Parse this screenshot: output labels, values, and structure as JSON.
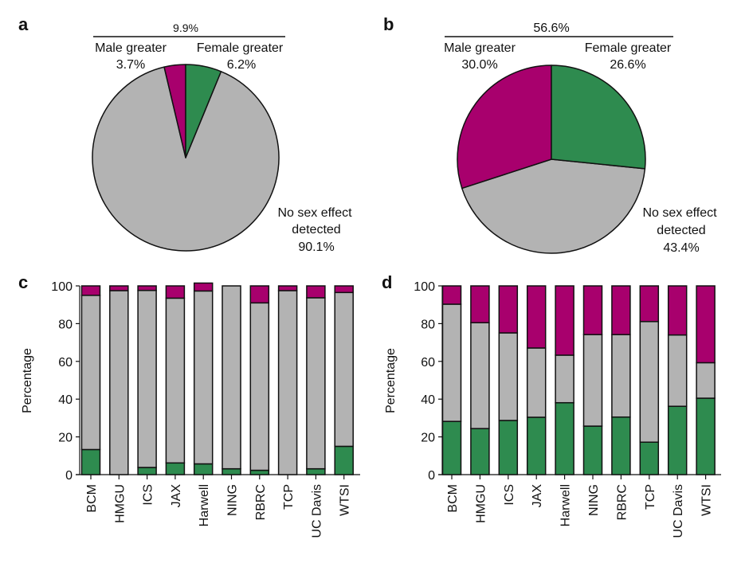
{
  "colors": {
    "male": "#a8006d",
    "female": "#2e8b4f",
    "none": "#b3b3b3",
    "outline": "#111111"
  },
  "chart_data": [
    {
      "panel": "a",
      "type": "pie",
      "title": "",
      "bracket_label": "9.9%",
      "slices": [
        {
          "key": "male",
          "label": "Male greater",
          "value": 3.7,
          "value_label": "3.7%"
        },
        {
          "key": "female",
          "label": "Female greater",
          "value": 6.2,
          "value_label": "6.2%"
        },
        {
          "key": "none",
          "label_line1": "No sex effect",
          "label_line2": "detected",
          "value": 90.1,
          "value_label": "90.1%"
        }
      ]
    },
    {
      "panel": "b",
      "type": "pie",
      "title": "",
      "bracket_label": "56.6%",
      "slices": [
        {
          "key": "male",
          "label": "Male greater",
          "value": 30.0,
          "value_label": "30.0%"
        },
        {
          "key": "female",
          "label": "Female greater",
          "value": 26.6,
          "value_label": "26.6%"
        },
        {
          "key": "none",
          "label_line1": "No sex effect",
          "label_line2": "detected",
          "value": 43.4,
          "value_label": "43.4%"
        }
      ]
    },
    {
      "panel": "c",
      "type": "bar",
      "stacked": true,
      "ylabel": "Percentage",
      "xlabel": "",
      "ylim": [
        0,
        100
      ],
      "yticks": [
        0,
        20,
        40,
        60,
        80,
        100
      ],
      "categories": [
        "BCM",
        "HMGU",
        "ICS",
        "JAX",
        "Harwell",
        "NING",
        "RBRC",
        "TCP",
        "UC Davis",
        "WTSI"
      ],
      "series": [
        {
          "name": "Female greater",
          "key": "female",
          "values": [
            13.3,
            0,
            3.8,
            6.2,
            5.7,
            3.1,
            2.3,
            0,
            3.1,
            15.0
          ]
        },
        {
          "name": "No sex effect detected",
          "key": "none",
          "values": [
            81.7,
            97.5,
            93.8,
            87.3,
            91.6,
            96.9,
            88.7,
            97.5,
            90.6,
            81.5
          ]
        },
        {
          "name": "Male greater",
          "key": "male",
          "values": [
            5.0,
            2.5,
            2.4,
            6.5,
            4.2,
            0,
            9.0,
            2.5,
            6.3,
            3.5
          ]
        }
      ]
    },
    {
      "panel": "d",
      "type": "bar",
      "stacked": true,
      "ylabel": "Percentage",
      "xlabel": "",
      "ylim": [
        0,
        100
      ],
      "yticks": [
        0,
        20,
        40,
        60,
        80,
        100
      ],
      "categories": [
        "BCM",
        "HMGU",
        "ICS",
        "JAX",
        "Harwell",
        "NING",
        "RBRC",
        "TCP",
        "UC Davis",
        "WTSI"
      ],
      "series": [
        {
          "name": "Female greater",
          "key": "female",
          "values": [
            28.2,
            24.4,
            28.7,
            30.4,
            38.1,
            25.7,
            30.5,
            17.2,
            36.2,
            40.5
          ]
        },
        {
          "name": "No sex effect detected",
          "key": "none",
          "values": [
            62.1,
            56.1,
            46.4,
            36.7,
            25.2,
            48.5,
            43.7,
            63.9,
            37.8,
            18.8
          ]
        },
        {
          "name": "Male greater",
          "key": "male",
          "values": [
            9.7,
            19.5,
            24.9,
            32.9,
            36.7,
            25.8,
            25.8,
            18.9,
            26.0,
            40.7
          ]
        }
      ]
    }
  ]
}
